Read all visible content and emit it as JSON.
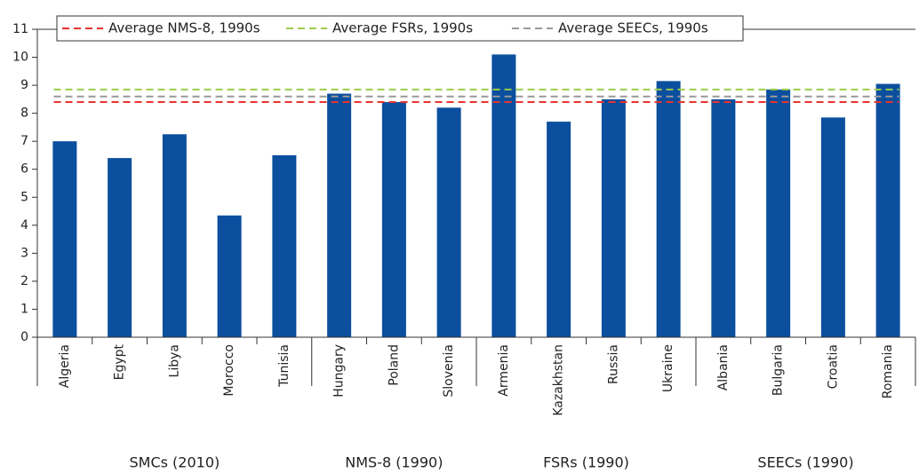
{
  "chart_data": {
    "type": "bar",
    "color": "#0b4f9e",
    "groups": [
      {
        "name": "SMCs (2010)",
        "categories": [
          "Algeria",
          "Egypt",
          "Libya",
          "Morocco",
          "Tunisia"
        ],
        "values": [
          7.0,
          6.4,
          7.25,
          4.35,
          6.5
        ]
      },
      {
        "name": "NMS-8 (1990)",
        "categories": [
          "Hungary",
          "Poland",
          "Slovenia"
        ],
        "values": [
          8.7,
          8.4,
          8.2
        ]
      },
      {
        "name": "FSRs (1990)",
        "categories": [
          "Armenia",
          "Kazakhstan",
          "Russia",
          "Ukraine"
        ],
        "values": [
          10.1,
          7.7,
          8.5,
          9.15
        ]
      },
      {
        "name": "SEECs (1990)",
        "categories": [
          "Albania",
          "Bulgaria",
          "Croatia",
          "Romania"
        ],
        "values": [
          8.5,
          8.85,
          7.85,
          9.05
        ]
      }
    ],
    "reference_lines": [
      {
        "name": "Average NMS-8, 1990s",
        "value": 8.4,
        "color": "#e8332f"
      },
      {
        "name": "Average FSRs, 1990s",
        "value": 8.85,
        "color": "#9ccc4a"
      },
      {
        "name": "Average SEECs, 1990s",
        "value": 8.6,
        "color": "#999999"
      }
    ],
    "ylim": [
      0,
      11
    ],
    "yticks": [
      0,
      1,
      2,
      3,
      4,
      5,
      6,
      7,
      8,
      9,
      10,
      11
    ]
  }
}
